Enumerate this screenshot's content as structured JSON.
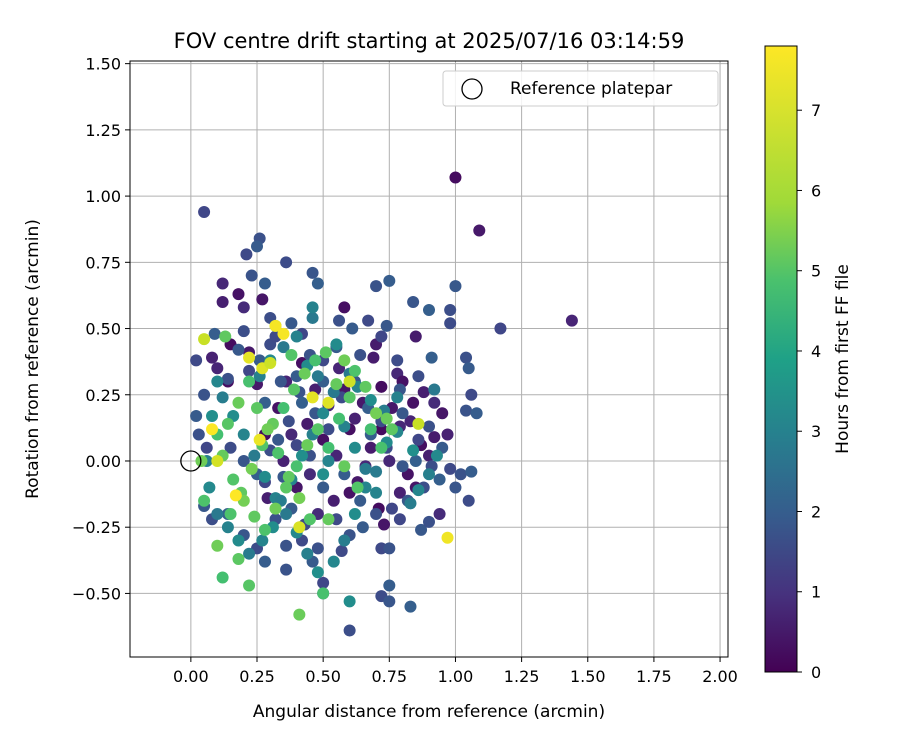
{
  "chart_data": {
    "type": "scatter",
    "title": "FOV centre drift starting at 2025/07/16 03:14:59",
    "xlabel": "Angular distance from reference (arcmin)",
    "ylabel": "Rotation from reference (arcmin)",
    "xlim": [
      -0.23,
      2.03
    ],
    "ylim": [
      -0.74,
      1.51
    ],
    "xticks": [
      "0.00",
      "0.25",
      "0.50",
      "0.75",
      "1.00",
      "1.25",
      "1.50",
      "1.75",
      "2.00"
    ],
    "yticks": [
      "−0.50",
      "−0.25",
      "0.00",
      "0.25",
      "0.50",
      "0.75",
      "1.00",
      "1.25",
      "1.50"
    ],
    "grid": true,
    "legend": {
      "placement": "top-right",
      "entries": [
        "Reference platepar"
      ]
    },
    "reference_point": {
      "x": 0.0,
      "y": 0.0
    },
    "colorbar": {
      "label": "Hours from first FF file",
      "range": [
        0,
        7.8
      ],
      "ticks": [
        "0",
        "1",
        "2",
        "3",
        "4",
        "5",
        "6",
        "7"
      ],
      "colormap": "viridis"
    },
    "points_hour0to1": [
      [
        1.0,
        1.07
      ],
      [
        1.09,
        0.87
      ],
      [
        1.44,
        0.53
      ],
      [
        0.58,
        0.58
      ],
      [
        0.85,
        0.47
      ],
      [
        0.12,
        0.67
      ],
      [
        0.18,
        0.63
      ],
      [
        0.12,
        0.6
      ],
      [
        0.2,
        0.58
      ],
      [
        0.27,
        0.61
      ],
      [
        0.08,
        0.39
      ],
      [
        0.15,
        0.44
      ],
      [
        0.22,
        0.41
      ],
      [
        0.1,
        0.35
      ],
      [
        0.14,
        0.3
      ],
      [
        0.69,
        0.39
      ],
      [
        0.78,
        0.33
      ],
      [
        0.8,
        0.3
      ],
      [
        0.88,
        0.26
      ],
      [
        0.92,
        0.22
      ],
      [
        0.95,
        0.18
      ],
      [
        0.97,
        0.1
      ],
      [
        0.72,
        0.28
      ],
      [
        0.65,
        0.22
      ],
      [
        0.56,
        0.35
      ],
      [
        0.6,
        0.12
      ],
      [
        0.68,
        0.05
      ],
      [
        0.75,
        0.0
      ],
      [
        0.82,
        -0.05
      ],
      [
        0.9,
        0.02
      ],
      [
        0.94,
        -0.2
      ],
      [
        0.85,
        -0.1
      ],
      [
        0.79,
        -0.12
      ],
      [
        0.71,
        -0.18
      ],
      [
        0.63,
        -0.08
      ],
      [
        0.55,
        0.02
      ],
      [
        0.5,
        0.08
      ],
      [
        0.44,
        0.14
      ],
      [
        0.38,
        0.1
      ],
      [
        0.33,
        0.2
      ],
      [
        0.47,
        0.27
      ],
      [
        0.52,
        0.21
      ],
      [
        0.58,
        0.27
      ],
      [
        0.62,
        0.16
      ],
      [
        0.72,
        0.12
      ],
      [
        0.76,
        0.2
      ],
      [
        0.83,
        0.15
      ],
      [
        0.87,
        0.06
      ],
      [
        0.92,
        0.09
      ],
      [
        0.66,
        -0.02
      ],
      [
        0.6,
        -0.12
      ],
      [
        0.54,
        -0.15
      ],
      [
        0.45,
        -0.05
      ],
      [
        0.4,
        -0.1
      ],
      [
        0.35,
        0.0
      ],
      [
        0.28,
        0.1
      ],
      [
        0.25,
        0.29
      ],
      [
        0.36,
        0.3
      ],
      [
        0.42,
        0.37
      ],
      [
        0.7,
        0.44
      ],
      [
        0.79,
        0.13
      ],
      [
        0.84,
        0.22
      ],
      [
        0.29,
        -0.14
      ],
      [
        0.48,
        -0.2
      ],
      [
        0.73,
        -0.24
      ]
    ],
    "points_hour1to3": [
      [
        0.05,
        0.94
      ],
      [
        0.26,
        0.84
      ],
      [
        0.25,
        0.81
      ],
      [
        0.21,
        0.78
      ],
      [
        0.23,
        0.7
      ],
      [
        0.28,
        0.67
      ],
      [
        0.36,
        0.75
      ],
      [
        0.46,
        0.71
      ],
      [
        0.48,
        0.67
      ],
      [
        0.3,
        0.54
      ],
      [
        0.38,
        0.52
      ],
      [
        0.42,
        0.48
      ],
      [
        0.56,
        0.53
      ],
      [
        0.61,
        0.5
      ],
      [
        0.67,
        0.53
      ],
      [
        0.7,
        0.66
      ],
      [
        0.75,
        0.68
      ],
      [
        0.78,
        0.38
      ],
      [
        0.84,
        0.6
      ],
      [
        0.9,
        0.57
      ],
      [
        0.98,
        0.57
      ],
      [
        1.0,
        0.66
      ],
      [
        1.17,
        0.5
      ],
      [
        1.04,
        0.39
      ],
      [
        1.05,
        0.35
      ],
      [
        1.06,
        0.25
      ],
      [
        1.04,
        0.19
      ],
      [
        1.08,
        0.18
      ],
      [
        0.98,
        0.52
      ],
      [
        0.79,
        0.27
      ],
      [
        0.91,
        0.39
      ],
      [
        0.86,
        0.32
      ],
      [
        0.74,
        0.51
      ],
      [
        0.72,
        0.47
      ],
      [
        0.64,
        0.4
      ],
      [
        0.55,
        0.43
      ],
      [
        0.5,
        0.38
      ],
      [
        0.45,
        0.4
      ],
      [
        0.4,
        0.32
      ],
      [
        0.3,
        0.44
      ],
      [
        0.34,
        0.3
      ],
      [
        0.28,
        0.22
      ],
      [
        0.2,
        0.49
      ],
      [
        0.18,
        0.42
      ],
      [
        0.22,
        0.34
      ],
      [
        0.14,
        0.31
      ],
      [
        0.26,
        0.38
      ],
      [
        0.32,
        0.47
      ],
      [
        0.41,
        0.26
      ],
      [
        0.5,
        0.3
      ],
      [
        0.57,
        0.24
      ],
      [
        0.62,
        0.3
      ],
      [
        0.67,
        0.2
      ],
      [
        0.72,
        0.15
      ],
      [
        0.8,
        0.18
      ],
      [
        0.86,
        0.08
      ],
      [
        0.9,
        0.13
      ],
      [
        0.95,
        0.05
      ],
      [
        0.98,
        -0.03
      ],
      [
        1.02,
        -0.05
      ],
      [
        1.06,
        -0.04
      ],
      [
        1.05,
        -0.15
      ],
      [
        1.0,
        -0.1
      ],
      [
        0.94,
        -0.07
      ],
      [
        0.88,
        -0.1
      ],
      [
        0.82,
        -0.15
      ],
      [
        0.76,
        -0.18
      ],
      [
        0.7,
        -0.2
      ],
      [
        0.65,
        -0.25
      ],
      [
        0.72,
        -0.33
      ],
      [
        0.75,
        -0.33
      ],
      [
        0.75,
        -0.47
      ],
      [
        0.72,
        -0.51
      ],
      [
        0.75,
        -0.53
      ],
      [
        0.83,
        -0.55
      ],
      [
        0.6,
        -0.64
      ],
      [
        0.5,
        -0.5
      ],
      [
        0.5,
        -0.46
      ],
      [
        0.48,
        -0.33
      ],
      [
        0.46,
        -0.38
      ],
      [
        0.42,
        -0.3
      ],
      [
        0.36,
        -0.41
      ],
      [
        0.28,
        -0.38
      ],
      [
        0.25,
        -0.33
      ],
      [
        0.2,
        -0.28
      ],
      [
        0.14,
        -0.2
      ],
      [
        0.08,
        -0.22
      ],
      [
        0.05,
        -0.17
      ],
      [
        0.06,
        0.05
      ],
      [
        0.03,
        0.1
      ],
      [
        0.02,
        0.17
      ],
      [
        0.02,
        0.38
      ],
      [
        0.05,
        0.25
      ],
      [
        0.09,
        0.48
      ],
      [
        0.15,
        0.05
      ],
      [
        0.2,
        0.0
      ],
      [
        0.25,
        -0.05
      ],
      [
        0.3,
        0.04
      ],
      [
        0.35,
        -0.06
      ],
      [
        0.4,
        0.06
      ],
      [
        0.45,
        0.02
      ],
      [
        0.5,
        -0.1
      ],
      [
        0.55,
        -0.22
      ],
      [
        0.6,
        -0.28
      ],
      [
        0.58,
        -0.05
      ],
      [
        0.52,
        0.12
      ],
      [
        0.47,
        0.18
      ],
      [
        0.42,
        0.22
      ],
      [
        0.37,
        0.15
      ],
      [
        0.33,
        0.08
      ],
      [
        0.28,
        -0.08
      ],
      [
        0.32,
        -0.22
      ],
      [
        0.38,
        -0.18
      ],
      [
        0.43,
        -0.24
      ],
      [
        0.36,
        -0.32
      ],
      [
        0.68,
        0.1
      ],
      [
        0.74,
        0.05
      ],
      [
        0.8,
        -0.02
      ],
      [
        0.85,
        0.0
      ],
      [
        0.91,
        -0.02
      ],
      [
        0.87,
        -0.26
      ],
      [
        0.79,
        -0.22
      ],
      [
        0.9,
        -0.23
      ],
      [
        0.64,
        -0.15
      ],
      [
        0.57,
        -0.34
      ]
    ],
    "points_hour3to5": [
      [
        0.46,
        0.54
      ],
      [
        0.46,
        0.58
      ],
      [
        0.55,
        0.44
      ],
      [
        0.6,
        0.33
      ],
      [
        0.63,
        0.28
      ],
      [
        0.68,
        0.23
      ],
      [
        0.73,
        0.19
      ],
      [
        0.78,
        0.11
      ],
      [
        0.84,
        0.04
      ],
      [
        0.9,
        -0.05
      ],
      [
        0.93,
        0.02
      ],
      [
        0.92,
        0.27
      ],
      [
        0.78,
        0.24
      ],
      [
        0.74,
        0.07
      ],
      [
        0.7,
        -0.04
      ],
      [
        0.66,
        -0.1
      ],
      [
        0.62,
        -0.2
      ],
      [
        0.58,
        -0.3
      ],
      [
        0.54,
        -0.38
      ],
      [
        0.48,
        -0.42
      ],
      [
        0.44,
        -0.35
      ],
      [
        0.4,
        -0.27
      ],
      [
        0.36,
        -0.2
      ],
      [
        0.32,
        -0.14
      ],
      [
        0.28,
        -0.06
      ],
      [
        0.24,
        0.02
      ],
      [
        0.2,
        0.1
      ],
      [
        0.16,
        0.17
      ],
      [
        0.12,
        0.24
      ],
      [
        0.1,
        0.3
      ],
      [
        0.08,
        0.17
      ],
      [
        0.06,
        0.0
      ],
      [
        0.07,
        -0.1
      ],
      [
        0.1,
        -0.2
      ],
      [
        0.14,
        -0.25
      ],
      [
        0.18,
        -0.3
      ],
      [
        0.22,
        -0.35
      ],
      [
        0.27,
        -0.3
      ],
      [
        0.31,
        -0.25
      ],
      [
        0.34,
        -0.15
      ],
      [
        0.38,
        -0.07
      ],
      [
        0.42,
        0.02
      ],
      [
        0.46,
        0.1
      ],
      [
        0.5,
        0.18
      ],
      [
        0.54,
        0.26
      ],
      [
        0.58,
        0.13
      ],
      [
        0.62,
        0.05
      ],
      [
        0.66,
        -0.03
      ],
      [
        0.7,
        -0.12
      ],
      [
        0.6,
        -0.53
      ],
      [
        0.83,
        -0.16
      ],
      [
        0.86,
        -0.11
      ],
      [
        0.5,
        -0.05
      ],
      [
        0.26,
        0.32
      ],
      [
        0.3,
        0.38
      ],
      [
        0.35,
        0.43
      ],
      [
        0.4,
        0.47
      ],
      [
        0.44,
        0.36
      ],
      [
        0.48,
        0.32
      ],
      [
        0.52,
        0.0
      ]
    ],
    "points_hour5to7": [
      [
        0.12,
        -0.44
      ],
      [
        0.22,
        -0.47
      ],
      [
        0.41,
        -0.58
      ],
      [
        0.5,
        -0.5
      ],
      [
        0.18,
        -0.37
      ],
      [
        0.1,
        -0.32
      ],
      [
        0.15,
        -0.2
      ],
      [
        0.19,
        -0.12
      ],
      [
        0.23,
        -0.03
      ],
      [
        0.27,
        0.06
      ],
      [
        0.31,
        0.14
      ],
      [
        0.35,
        0.2
      ],
      [
        0.39,
        0.27
      ],
      [
        0.43,
        0.33
      ],
      [
        0.47,
        0.38
      ],
      [
        0.51,
        0.41
      ],
      [
        0.58,
        0.38
      ],
      [
        0.62,
        0.34
      ],
      [
        0.66,
        0.28
      ],
      [
        0.7,
        0.18
      ],
      [
        0.63,
        -0.1
      ],
      [
        0.58,
        -0.02
      ],
      [
        0.52,
        0.05
      ],
      [
        0.48,
        0.12
      ],
      [
        0.44,
        0.06
      ],
      [
        0.4,
        -0.02
      ],
      [
        0.36,
        -0.1
      ],
      [
        0.32,
        -0.18
      ],
      [
        0.28,
        -0.26
      ],
      [
        0.24,
        -0.21
      ],
      [
        0.2,
        -0.15
      ],
      [
        0.16,
        -0.07
      ],
      [
        0.12,
        0.02
      ],
      [
        0.1,
        0.1
      ],
      [
        0.14,
        0.14
      ],
      [
        0.18,
        0.22
      ],
      [
        0.22,
        0.3
      ],
      [
        0.25,
        0.2
      ],
      [
        0.29,
        0.12
      ],
      [
        0.33,
        0.03
      ],
      [
        0.37,
        -0.06
      ],
      [
        0.41,
        -0.14
      ],
      [
        0.45,
        -0.22
      ],
      [
        0.52,
        -0.22
      ],
      [
        0.56,
        0.16
      ],
      [
        0.6,
        0.24
      ],
      [
        0.74,
        0.16
      ],
      [
        0.72,
        0.05
      ],
      [
        0.76,
        0.12
      ],
      [
        0.04,
        0.0
      ],
      [
        0.05,
        -0.15
      ],
      [
        0.13,
        0.47
      ],
      [
        0.32,
        0.51
      ],
      [
        0.38,
        0.4
      ],
      [
        0.55,
        0.29
      ],
      [
        0.68,
        0.12
      ]
    ],
    "points_hour7plus": [
      [
        0.05,
        0.46
      ],
      [
        0.27,
        0.35
      ],
      [
        0.32,
        0.51
      ],
      [
        0.3,
        0.37
      ],
      [
        0.22,
        0.39
      ],
      [
        0.08,
        0.12
      ],
      [
        0.1,
        0.0
      ],
      [
        0.26,
        0.08
      ],
      [
        0.17,
        -0.13
      ],
      [
        0.41,
        -0.25
      ],
      [
        0.97,
        -0.29
      ],
      [
        0.86,
        0.14
      ],
      [
        0.52,
        0.22
      ],
      [
        0.35,
        0.48
      ],
      [
        0.6,
        0.3
      ],
      [
        0.46,
        0.24
      ]
    ]
  }
}
